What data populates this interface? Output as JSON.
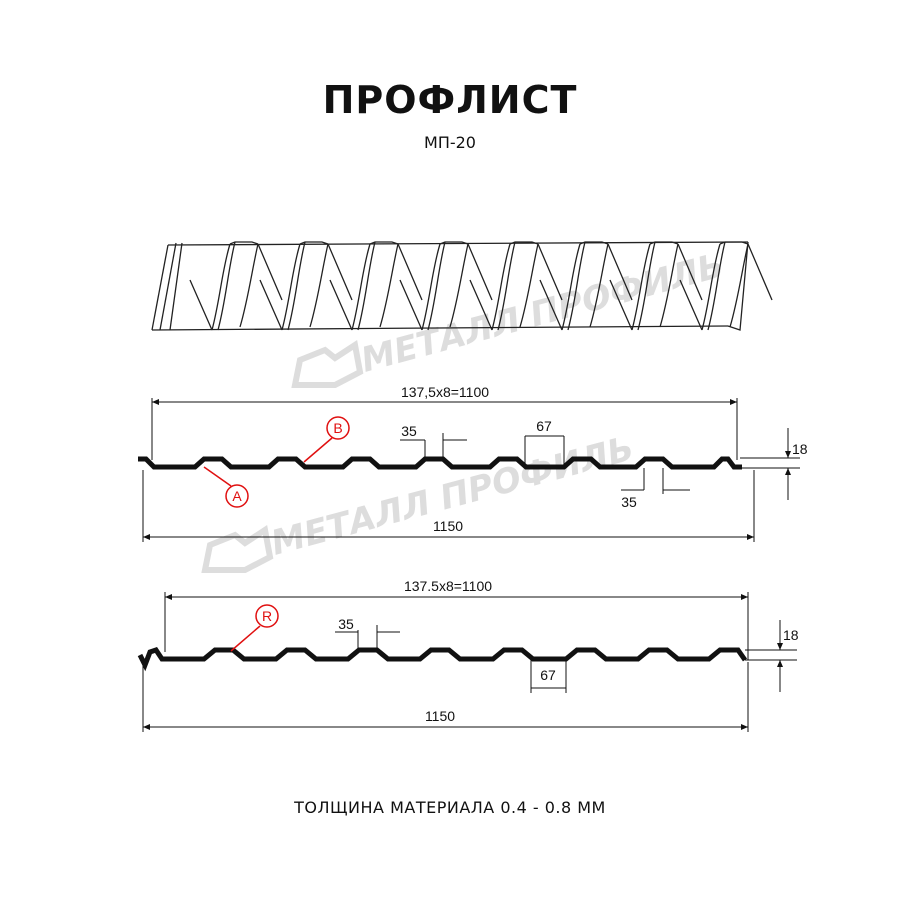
{
  "title": "ПРОФЛИСТ",
  "subtitle": "МП-20",
  "watermark": "МЕТАЛЛ ПРОФИЛЬ",
  "profile_1": {
    "pitch_dim": "137,5x8=1100",
    "width_dim": "1150",
    "height_dim": "18",
    "crest_dim": "35",
    "trough_dim": "67",
    "crest_dim_2": "35",
    "label_a": "A",
    "label_b": "B"
  },
  "profile_2": {
    "pitch_dim": "137.5x8=1100",
    "width_dim": "1150",
    "height_dim": "18",
    "crest_dim": "35",
    "trough_dim": "67",
    "label_r": "R"
  },
  "footer": "ТОЛЩИНА МАТЕРИАЛА 0.4 - 0.8 ММ",
  "colors": {
    "profile": "#111111",
    "callout": "#e01010",
    "watermark": "#dddddd"
  }
}
